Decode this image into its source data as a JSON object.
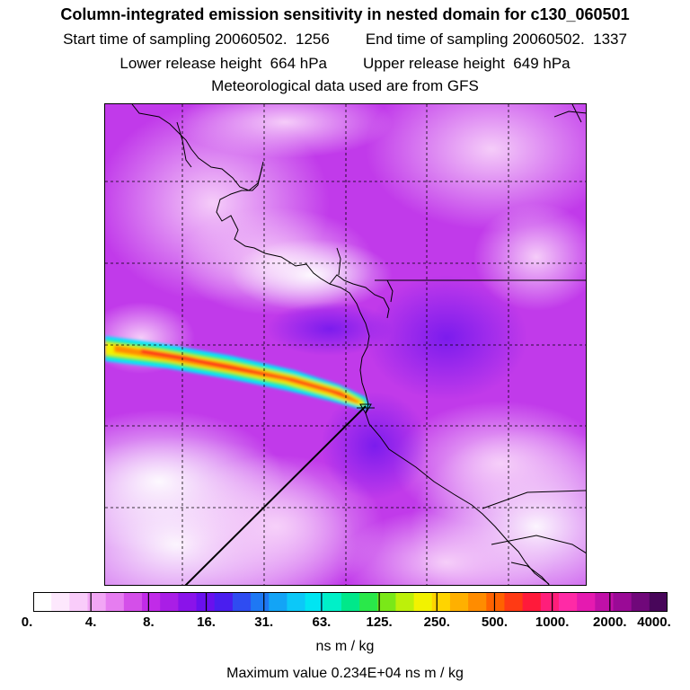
{
  "title": "Column-integrated emission sensitivity in nested domain for c130_060501",
  "header": {
    "start_label": "Start time of sampling",
    "start_value": "20060502.  1256",
    "end_label": "End time of sampling",
    "end_value": "20060502.  1337",
    "lower_label": "Lower release height",
    "lower_value": "664 hPa",
    "upper_label": "Upper release height",
    "upper_value": "649 hPa",
    "met_note": "Meteorological data used are from GFS"
  },
  "colorbar": {
    "labels": [
      "0.",
      "4.",
      "8.",
      "16.",
      "31.",
      "63.",
      "125.",
      "250.",
      "500.",
      "1000.",
      "2000.",
      "4000."
    ],
    "colors": [
      "#ffffff",
      "#fde8fd",
      "#f9ccfa",
      "#f2a6f5",
      "#e67df0",
      "#d44fe9",
      "#c12be8",
      "#a91ee6",
      "#8a13ea",
      "#6a10ee",
      "#4a1eef",
      "#2f4cf1",
      "#1e78f4",
      "#13a4f6",
      "#0cc8f8",
      "#00e5f2",
      "#00f0c8",
      "#00e88a",
      "#2ae84a",
      "#7ae818",
      "#bdf00a",
      "#f2f200",
      "#ffd400",
      "#ffb000",
      "#ff8c00",
      "#ff6200",
      "#ff3a14",
      "#ff1a3a",
      "#ff1e7a",
      "#ff2aa6",
      "#e51ab0",
      "#c010a8",
      "#9a0a96",
      "#70087a",
      "#48065a"
    ],
    "unit": "ns m / kg"
  },
  "max_value_text": "Maximum value  0.234E+04 ns m / kg",
  "map": {
    "background_color": "#b52ee6",
    "plume_colors": [
      "#00e8ff",
      "#2ae84a",
      "#f2f200",
      "#ff8c00",
      "#ff2a14"
    ],
    "release_point_symbol": "triangle-marker"
  }
}
